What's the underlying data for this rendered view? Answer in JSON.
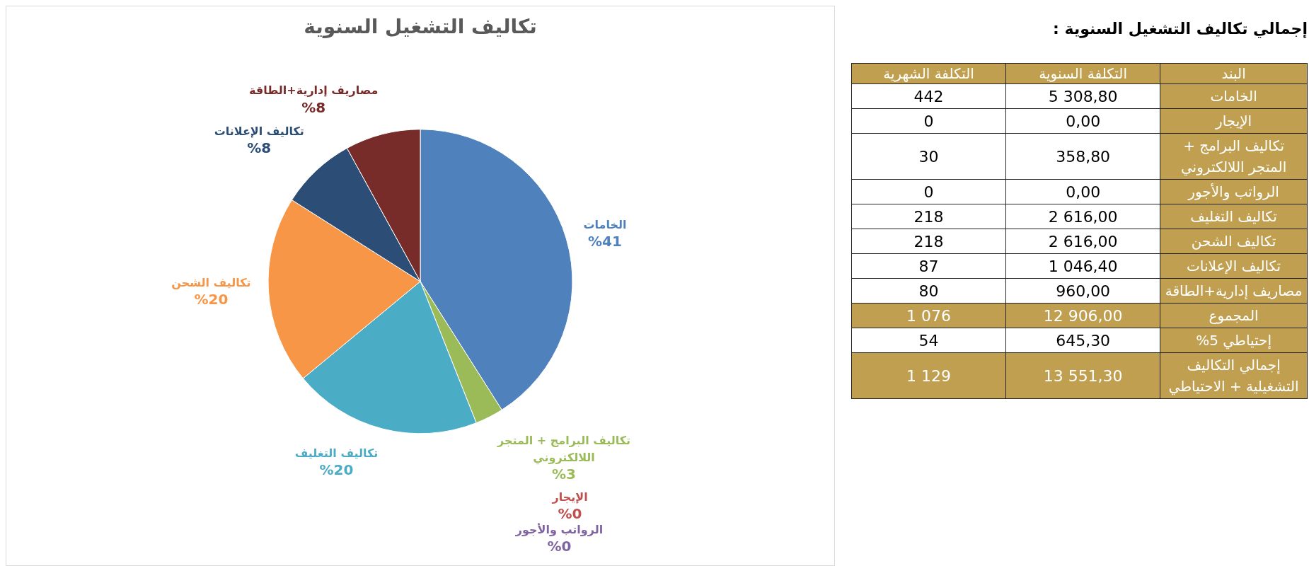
{
  "chart_data": [
    {
      "type": "pie",
      "title": "تكاليف التشغيل السنوية",
      "categories": [
        "الخامات",
        "الإيجار",
        "تكاليف البرامج + المتجر اللالكتروني",
        "الرواتب والأجور",
        "تكاليف التغليف",
        "تكاليف الشحن",
        "تكاليف الإعلانات",
        "مصاريف إدارية+الطاقة"
      ],
      "values": [
        41,
        0,
        3,
        0,
        20,
        20,
        8,
        8
      ],
      "value_labels": [
        "%41",
        "%0",
        "%3",
        "%0",
        "%20",
        "%20",
        "%8",
        "%8"
      ],
      "colors": [
        "#4f81bd",
        "#c0504d",
        "#9bbb59",
        "#8064a2",
        "#4bacc6",
        "#f79646",
        "#2c4d75",
        "#772c2a"
      ],
      "legend": false
    },
    {
      "type": "other",
      "title": "إجمالي تكاليف التشغيل السنوية :",
      "xlabel": "البند",
      "categories": [
        "الخامات",
        "الإيجار",
        "تكاليف البرامج + المتجر اللالكتروني",
        "الرواتب والأجور",
        "تكاليف التغليف",
        "تكاليف الشحن",
        "تكاليف الإعلانات",
        "مصاريف إدارية+الطاقة",
        "المجموع",
        "إحتياطي 5%",
        "إجمالي التكاليف التشغيلية + الاحتياطي"
      ],
      "series": [
        {
          "name": "التكلفة السنوية",
          "colors": [
            "#ffffff",
            "#ffffff",
            "#ffffff",
            "#ffffff",
            "#ffffff",
            "#ffffff",
            "#ffffff",
            "#ffffff",
            "#c0a050",
            "#ffffff",
            "#c0a050"
          ],
          "values": [
            5308.8,
            0,
            358.8,
            0,
            2616,
            2616,
            1046.4,
            960,
            12906,
            645.3,
            13551.3
          ],
          "value_labels": [
            "5 308,80",
            "0,00",
            "358,80",
            "0,00",
            "2 616,00",
            "2 616,00",
            "1 046,40",
            "960,00",
            "12 906,00",
            "645,30",
            "13 551,30"
          ]
        },
        {
          "name": "التكلفة الشهرية",
          "colors": [
            "#ffffff",
            "#ffffff",
            "#ffffff",
            "#ffffff",
            "#ffffff",
            "#ffffff",
            "#ffffff",
            "#ffffff",
            "#c0a050",
            "#ffffff",
            "#c0a050"
          ],
          "values": [
            442,
            0,
            30,
            0,
            218,
            218,
            87,
            80,
            1076,
            54,
            1129
          ],
          "value_labels": [
            "442",
            "0",
            "30",
            "0",
            "218",
            "218",
            "87",
            "80",
            "1 076",
            "54",
            "1 129"
          ]
        }
      ]
    }
  ]
}
